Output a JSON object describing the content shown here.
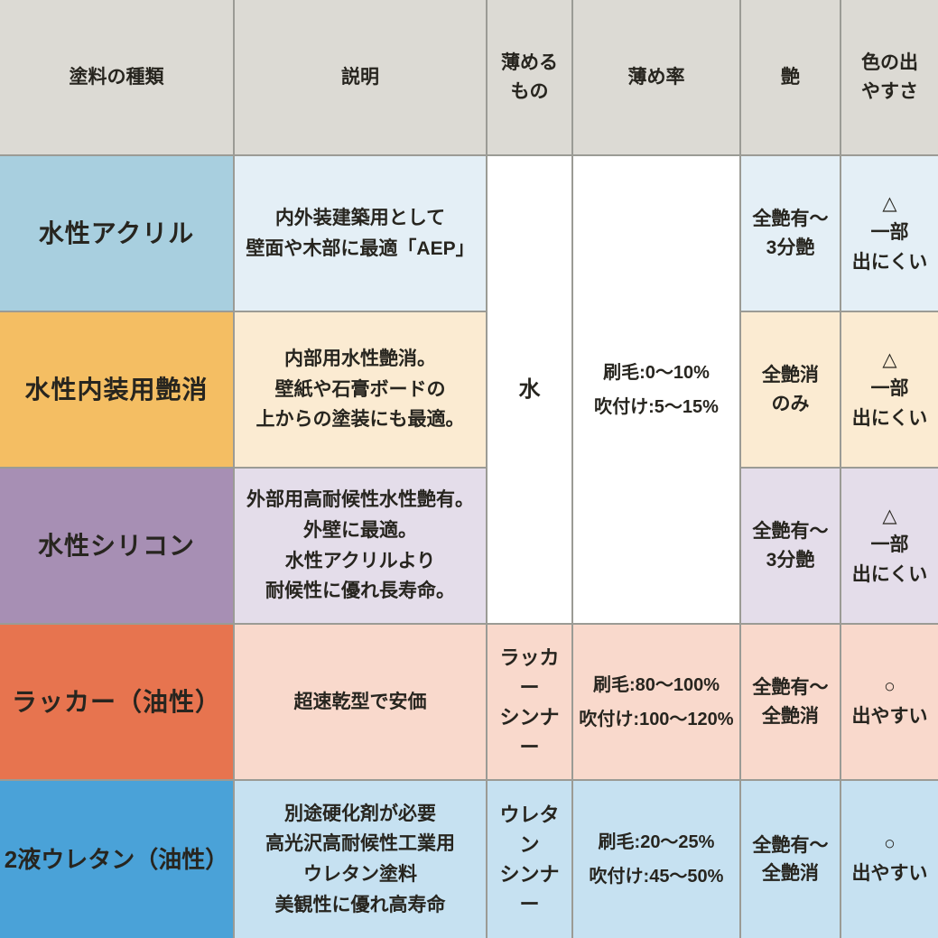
{
  "table": {
    "border_color": "#9b9b95",
    "header": {
      "bg": "#dcdad4",
      "cells": {
        "type": "塗料の種類",
        "description": "説明",
        "thinner": "薄める\nもの",
        "ratio": "薄め率",
        "gloss": "艶",
        "color_ease": "色の出\nやすさ"
      }
    },
    "merged": {
      "thinner": {
        "text": "水",
        "bg": "#ffffff"
      },
      "ratio": {
        "text": "刷毛:0〜10%\n吹付け:5〜15%",
        "bg": "#ffffff"
      }
    },
    "rows": [
      {
        "name": "水性アクリル",
        "name_bg": "#a8cfdf",
        "tint_bg": "#e4eff6",
        "description": "内外装建築用として\n壁面や木部に最適「AEP」",
        "gloss": "全艶有〜\n3分艶",
        "color_ease": "△\n一部\n出にくい"
      },
      {
        "name": "水性内装用艶消",
        "name_bg": "#f4be63",
        "tint_bg": "#fbebd2",
        "description": "内部用水性艶消。\n壁紙や石膏ボードの\n上からの塗装にも最適。",
        "gloss": "全艶消\nのみ",
        "color_ease": "△\n一部\n出にくい"
      },
      {
        "name": "水性シリコン",
        "name_bg": "#a78fb4",
        "tint_bg": "#e4ddea",
        "description": "外部用高耐候性水性艶有。\n外壁に最適。\n水性アクリルより\n耐候性に優れ長寿命。",
        "gloss": "全艶有〜\n3分艶",
        "color_ease": "△\n一部\n出にくい"
      },
      {
        "name": "ラッカー（油性）",
        "name_bg": "#e7744f",
        "tint_bg": "#f9d9cc",
        "description": "超速乾型で安価",
        "thinner": "ラッカー\nシンナー",
        "ratio": "刷毛:80〜100%\n吹付け:100〜120%",
        "gloss": "全艶有〜\n全艶消",
        "color_ease": "○\n出やすい"
      },
      {
        "name": "2液ウレタン（油性）",
        "name_bg": "#4aa2d8",
        "tint_bg": "#c6e1f1",
        "description": "別途硬化剤が必要\n高光沢高耐候性工業用\nウレタン塗料\n美観性に優れ高寿命",
        "thinner": "ウレタン\nシンナー",
        "ratio": "刷毛:20〜25%\n吹付け:45〜50%",
        "gloss": "全艶有〜\n全艶消",
        "color_ease": "○\n出やすい"
      }
    ]
  }
}
